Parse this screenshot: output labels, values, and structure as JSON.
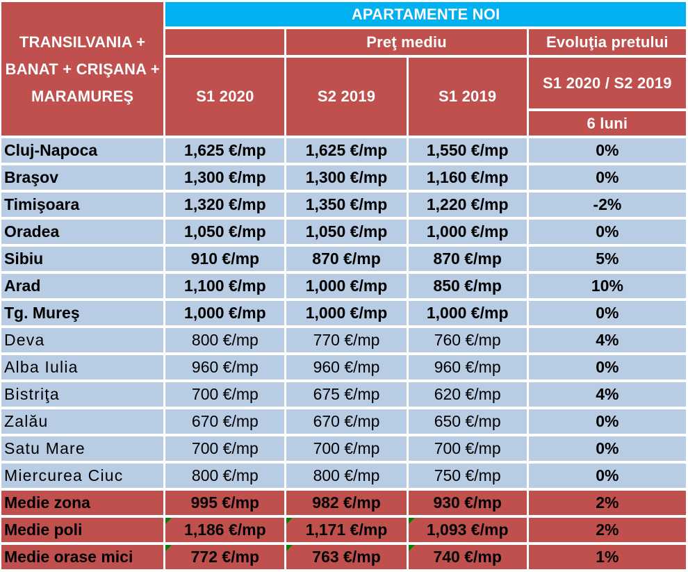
{
  "header": {
    "region_title": "TRANSILVANIA + BANAT + CRIŞANA + MARAMUREŞ",
    "group_title": "APARTAMENTE NOI",
    "avg_price_title": "Preţ mediu",
    "evolution_title": "Evoluţia pretului",
    "columns": [
      "S1 2020",
      "S2 2019",
      "S1 2019"
    ],
    "evolution_range": "S1 2020  / S2 2019",
    "evolution_period": "6 luni"
  },
  "major_cities": [
    {
      "city": "Cluj-Napoca",
      "s1_2020": "1,625 €/mp",
      "s2_2019": "1,625 €/mp",
      "s1_2019": "1,550 €/mp",
      "evolution": "0%"
    },
    {
      "city": "Braşov",
      "s1_2020": "1,300 €/mp",
      "s2_2019": "1,300 €/mp",
      "s1_2019": "1,160 €/mp",
      "evolution": "0%"
    },
    {
      "city": "Timişoara",
      "s1_2020": "1,320 €/mp",
      "s2_2019": "1,350 €/mp",
      "s1_2019": "1,220 €/mp",
      "evolution": "-2%"
    },
    {
      "city": "Oradea",
      "s1_2020": "1,050 €/mp",
      "s2_2019": "1,050 €/mp",
      "s1_2019": "1,000 €/mp",
      "evolution": "0%"
    },
    {
      "city": "Sibiu",
      "s1_2020": "910 €/mp",
      "s2_2019": "870 €/mp",
      "s1_2019": "870 €/mp",
      "evolution": "5%"
    },
    {
      "city": "Arad",
      "s1_2020": "1,100 €/mp",
      "s2_2019": "1,000 €/mp",
      "s1_2019": "850 €/mp",
      "evolution": "10%"
    },
    {
      "city": "Tg. Mureş",
      "s1_2020": "1,000 €/mp",
      "s2_2019": "1,000 €/mp",
      "s1_2019": "1,000 €/mp",
      "evolution": "0%"
    }
  ],
  "minor_cities": [
    {
      "city": "Deva",
      "s1_2020": "800 €/mp",
      "s2_2019": "770 €/mp",
      "s1_2019": "760 €/mp",
      "evolution": "4%"
    },
    {
      "city": "Alba Iulia",
      "s1_2020": "960 €/mp",
      "s2_2019": "960 €/mp",
      "s1_2019": "960 €/mp",
      "evolution": "0%"
    },
    {
      "city": "Bistriţa",
      "s1_2020": "700 €/mp",
      "s2_2019": "675 €/mp",
      "s1_2019": "620 €/mp",
      "evolution": "4%"
    },
    {
      "city": "Zalău",
      "s1_2020": "670 €/mp",
      "s2_2019": "670 €/mp",
      "s1_2019": "650 €/mp",
      "evolution": "0%"
    },
    {
      "city": "Satu Mare",
      "s1_2020": "700 €/mp",
      "s2_2019": "700 €/mp",
      "s1_2019": "700 €/mp",
      "evolution": "0%"
    },
    {
      "city": "Miercurea Ciuc",
      "s1_2020": "800 €/mp",
      "s2_2019": "800 €/mp",
      "s1_2019": "750 €/mp",
      "evolution": "0%"
    }
  ],
  "summary": [
    {
      "city": "Medie zona",
      "s1_2020": "995 €/mp",
      "s2_2019": "982 €/mp",
      "s1_2019": "930 €/mp",
      "evolution": "2%"
    },
    {
      "city": "Medie poli",
      "s1_2020": "1,186 €/mp",
      "s2_2019": "1,171 €/mp",
      "s1_2019": "1,093 €/mp",
      "evolution": "2%"
    },
    {
      "city": "Medie orase mici",
      "s1_2020": "772 €/mp",
      "s2_2019": "763 €/mp",
      "s1_2019": "740 €/mp",
      "evolution": "1%"
    }
  ],
  "colors": {
    "header_red": "#c0504d",
    "title_blue": "#00b0f0",
    "row_blue": "#b8cce4",
    "formula_flag": "#008000"
  }
}
